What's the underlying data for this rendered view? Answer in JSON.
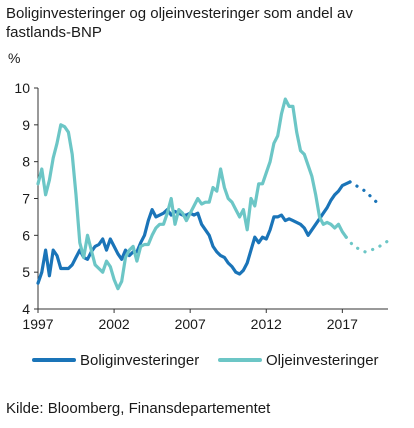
{
  "title": "Boliginvesteringer og oljeinvesteringer som andel av fastlands-BNP",
  "unit": "%",
  "source": "Kilde: Bloomberg, Finansdepartementet",
  "colors": {
    "bolig": "#1a74b8",
    "olje": "#6cc6c6",
    "axis": "#333333"
  },
  "chart_data": {
    "type": "line",
    "title": "Boliginvesteringer og oljeinvesteringer som andel av fastlands-BNP",
    "xlabel": "",
    "ylabel": "%",
    "xlim": [
      1997,
      2020
    ],
    "ylim": [
      4,
      10
    ],
    "yticks": [
      4,
      5,
      6,
      7,
      8,
      9,
      10
    ],
    "xticks": [
      1997,
      2002,
      2007,
      2012,
      2017
    ],
    "grid": false,
    "legend": "bottom",
    "series": [
      {
        "name": "Boliginvesteringer",
        "color": "#1a74b8",
        "actual": [
          [
            1997.0,
            4.7
          ],
          [
            1997.25,
            5.0
          ],
          [
            1997.5,
            5.6
          ],
          [
            1997.75,
            4.9
          ],
          [
            1998.0,
            5.6
          ],
          [
            1998.25,
            5.45
          ],
          [
            1998.5,
            5.1
          ],
          [
            1998.75,
            5.1
          ],
          [
            1999.0,
            5.1
          ],
          [
            1999.25,
            5.2
          ],
          [
            1999.5,
            5.4
          ],
          [
            1999.75,
            5.6
          ],
          [
            2000.0,
            5.4
          ],
          [
            2000.25,
            5.35
          ],
          [
            2000.5,
            5.55
          ],
          [
            2000.75,
            5.7
          ],
          [
            2001.0,
            5.75
          ],
          [
            2001.25,
            5.9
          ],
          [
            2001.5,
            5.6
          ],
          [
            2001.75,
            5.9
          ],
          [
            2002.0,
            5.7
          ],
          [
            2002.25,
            5.5
          ],
          [
            2002.5,
            5.35
          ],
          [
            2002.75,
            5.6
          ],
          [
            2003.0,
            5.45
          ],
          [
            2003.25,
            5.55
          ],
          [
            2003.5,
            5.55
          ],
          [
            2003.75,
            5.8
          ],
          [
            2004.0,
            6.0
          ],
          [
            2004.25,
            6.4
          ],
          [
            2004.5,
            6.7
          ],
          [
            2004.75,
            6.5
          ],
          [
            2005.0,
            6.55
          ],
          [
            2005.25,
            6.6
          ],
          [
            2005.5,
            6.7
          ],
          [
            2005.75,
            6.55
          ],
          [
            2006.0,
            6.65
          ],
          [
            2006.25,
            6.6
          ],
          [
            2006.5,
            6.55
          ],
          [
            2006.75,
            6.55
          ],
          [
            2007.0,
            6.6
          ],
          [
            2007.25,
            6.55
          ],
          [
            2007.5,
            6.6
          ],
          [
            2007.75,
            6.3
          ],
          [
            2008.0,
            6.15
          ],
          [
            2008.25,
            6.0
          ],
          [
            2008.5,
            5.7
          ],
          [
            2008.75,
            5.55
          ],
          [
            2009.0,
            5.45
          ],
          [
            2009.25,
            5.4
          ],
          [
            2009.5,
            5.25
          ],
          [
            2009.75,
            5.15
          ],
          [
            2010.0,
            5.0
          ],
          [
            2010.25,
            4.95
          ],
          [
            2010.5,
            5.05
          ],
          [
            2010.75,
            5.25
          ],
          [
            2011.0,
            5.6
          ],
          [
            2011.25,
            5.95
          ],
          [
            2011.5,
            5.8
          ],
          [
            2011.75,
            5.95
          ],
          [
            2012.0,
            5.9
          ],
          [
            2012.25,
            6.15
          ],
          [
            2012.5,
            6.5
          ],
          [
            2012.75,
            6.5
          ],
          [
            2013.0,
            6.55
          ],
          [
            2013.25,
            6.4
          ],
          [
            2013.5,
            6.45
          ],
          [
            2013.75,
            6.4
          ],
          [
            2014.0,
            6.35
          ],
          [
            2014.25,
            6.3
          ],
          [
            2014.5,
            6.2
          ],
          [
            2014.75,
            6.0
          ],
          [
            2015.0,
            6.15
          ],
          [
            2015.25,
            6.3
          ],
          [
            2015.5,
            6.45
          ],
          [
            2015.75,
            6.6
          ],
          [
            2016.0,
            6.75
          ],
          [
            2016.25,
            6.95
          ],
          [
            2016.5,
            7.1
          ],
          [
            2016.75,
            7.2
          ],
          [
            2017.0,
            7.35
          ],
          [
            2017.5,
            7.45
          ]
        ],
        "projection": [
          [
            2017.5,
            7.45
          ],
          [
            2018.5,
            7.2
          ],
          [
            2019.5,
            6.8
          ]
        ]
      },
      {
        "name": "Oljeinvesteringer",
        "color": "#6cc6c6",
        "actual": [
          [
            1997.0,
            7.4
          ],
          [
            1997.25,
            7.8
          ],
          [
            1997.5,
            7.1
          ],
          [
            1997.75,
            7.5
          ],
          [
            1998.0,
            8.1
          ],
          [
            1998.25,
            8.5
          ],
          [
            1998.5,
            9.0
          ],
          [
            1998.75,
            8.95
          ],
          [
            1999.0,
            8.8
          ],
          [
            1999.25,
            8.2
          ],
          [
            1999.5,
            7.1
          ],
          [
            1999.75,
            5.8
          ],
          [
            2000.0,
            5.4
          ],
          [
            2000.25,
            6.0
          ],
          [
            2000.5,
            5.6
          ],
          [
            2000.75,
            5.2
          ],
          [
            2001.0,
            5.1
          ],
          [
            2001.25,
            5.0
          ],
          [
            2001.5,
            5.3
          ],
          [
            2001.75,
            5.15
          ],
          [
            2002.0,
            4.8
          ],
          [
            2002.25,
            4.55
          ],
          [
            2002.5,
            4.75
          ],
          [
            2002.75,
            5.4
          ],
          [
            2003.0,
            5.6
          ],
          [
            2003.25,
            5.7
          ],
          [
            2003.5,
            5.3
          ],
          [
            2003.75,
            5.7
          ],
          [
            2004.0,
            5.75
          ],
          [
            2004.25,
            5.75
          ],
          [
            2004.5,
            6.0
          ],
          [
            2004.75,
            6.2
          ],
          [
            2005.0,
            6.3
          ],
          [
            2005.25,
            6.3
          ],
          [
            2005.5,
            6.6
          ],
          [
            2005.75,
            7.0
          ],
          [
            2006.0,
            6.3
          ],
          [
            2006.25,
            6.7
          ],
          [
            2006.5,
            6.6
          ],
          [
            2006.75,
            6.4
          ],
          [
            2007.0,
            6.6
          ],
          [
            2007.25,
            6.8
          ],
          [
            2007.5,
            7.0
          ],
          [
            2007.75,
            6.85
          ],
          [
            2008.0,
            6.9
          ],
          [
            2008.25,
            6.9
          ],
          [
            2008.5,
            7.3
          ],
          [
            2008.75,
            7.2
          ],
          [
            2009.0,
            7.8
          ],
          [
            2009.25,
            7.3
          ],
          [
            2009.5,
            7.0
          ],
          [
            2009.75,
            6.9
          ],
          [
            2010.0,
            6.7
          ],
          [
            2010.25,
            6.5
          ],
          [
            2010.5,
            6.7
          ],
          [
            2010.75,
            6.15
          ],
          [
            2011.0,
            7.0
          ],
          [
            2011.25,
            6.8
          ],
          [
            2011.5,
            7.4
          ],
          [
            2011.75,
            7.4
          ],
          [
            2012.0,
            7.7
          ],
          [
            2012.25,
            8.0
          ],
          [
            2012.5,
            8.5
          ],
          [
            2012.75,
            8.7
          ],
          [
            2013.0,
            9.3
          ],
          [
            2013.25,
            9.7
          ],
          [
            2013.5,
            9.5
          ],
          [
            2013.75,
            9.5
          ],
          [
            2014.0,
            8.8
          ],
          [
            2014.25,
            8.3
          ],
          [
            2014.5,
            8.2
          ],
          [
            2014.75,
            7.9
          ],
          [
            2015.0,
            7.6
          ],
          [
            2015.25,
            7.1
          ],
          [
            2015.5,
            6.5
          ],
          [
            2015.75,
            6.3
          ],
          [
            2016.0,
            6.35
          ],
          [
            2016.25,
            6.3
          ],
          [
            2016.5,
            6.2
          ],
          [
            2016.75,
            6.3
          ],
          [
            2017.0,
            6.1
          ],
          [
            2017.25,
            5.95
          ]
        ],
        "projection": [
          [
            2017.25,
            5.95
          ],
          [
            2017.75,
            5.7
          ],
          [
            2018.5,
            5.55
          ],
          [
            2019.25,
            5.65
          ],
          [
            2020.0,
            5.85
          ]
        ]
      }
    ]
  }
}
